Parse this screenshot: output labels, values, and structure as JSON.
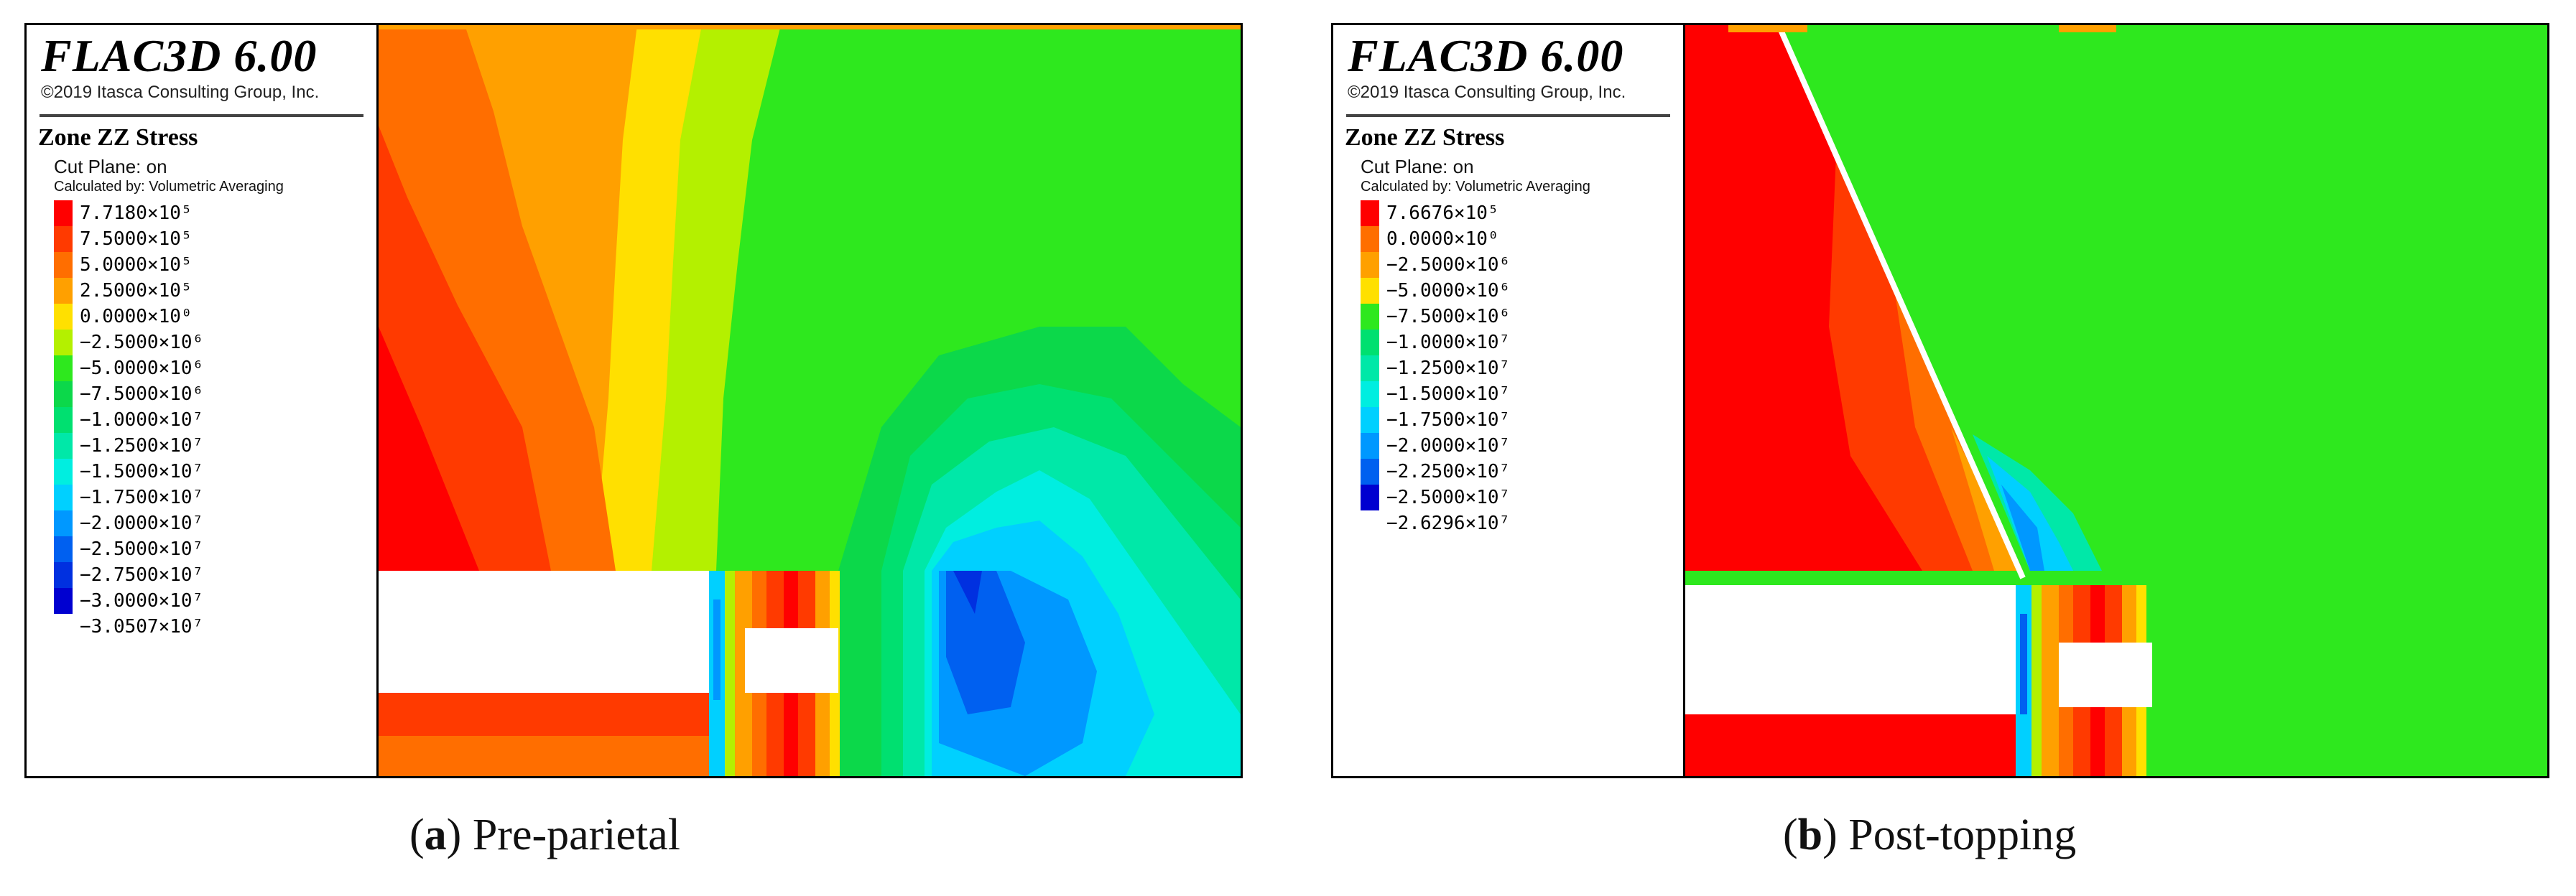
{
  "panels": [
    {
      "app_title": "FLAC3D 6.00",
      "copyright": "©2019 Itasca Consulting Group, Inc.",
      "section_title": "Zone ZZ Stress",
      "cut_plane": "Cut Plane: on",
      "calculated_by": "Calculated by: Volumetric Averaging",
      "legend": [
        {
          "label": "7.7180×10⁵",
          "color": "#ff0000"
        },
        {
          "label": "7.5000×10⁵",
          "color": "#ff3a00"
        },
        {
          "label": "5.0000×10⁵",
          "color": "#ff6e00"
        },
        {
          "label": "2.5000×10⁵",
          "color": "#ffa000"
        },
        {
          "label": "0.0000×10⁰",
          "color": "#ffe000"
        },
        {
          "label": "−2.5000×10⁶",
          "color": "#b4f000"
        },
        {
          "label": "−5.0000×10⁶",
          "color": "#2ee81e"
        },
        {
          "label": "−7.5000×10⁶",
          "color": "#0cd84a"
        },
        {
          "label": "−1.0000×10⁷",
          "color": "#00e070"
        },
        {
          "label": "−1.2500×10⁷",
          "color": "#00e8a8"
        },
        {
          "label": "−1.5000×10⁷",
          "color": "#00eee0"
        },
        {
          "label": "−1.7500×10⁷",
          "color": "#00d0ff"
        },
        {
          "label": "−2.0000×10⁷",
          "color": "#0098ff"
        },
        {
          "label": "−2.5000×10⁷",
          "color": "#0060f0"
        },
        {
          "label": "−2.7500×10⁷",
          "color": "#0030e0"
        },
        {
          "label": "−3.0000×10⁷",
          "color": "#0000d0"
        },
        {
          "label": "−3.0507×10⁷",
          "color": ""
        }
      ]
    },
    {
      "app_title": "FLAC3D 6.00",
      "copyright": "©2019 Itasca Consulting Group, Inc.",
      "section_title": "Zone ZZ Stress",
      "cut_plane": "Cut Plane: on",
      "calculated_by": "Calculated by: Volumetric Averaging",
      "legend": [
        {
          "label": "7.6676×10⁵",
          "color": "#ff0000"
        },
        {
          "label": "0.0000×10⁰",
          "color": "#ff6e00"
        },
        {
          "label": "−2.5000×10⁶",
          "color": "#ffa000"
        },
        {
          "label": "−5.0000×10⁶",
          "color": "#ffe000"
        },
        {
          "label": "−7.5000×10⁶",
          "color": "#2ee81e"
        },
        {
          "label": "−1.0000×10⁷",
          "color": "#00e070"
        },
        {
          "label": "−1.2500×10⁷",
          "color": "#00e8a8"
        },
        {
          "label": "−1.5000×10⁷",
          "color": "#00eee0"
        },
        {
          "label": "−1.7500×10⁷",
          "color": "#00d0ff"
        },
        {
          "label": "−2.0000×10⁷",
          "color": "#0098ff"
        },
        {
          "label": "−2.2500×10⁷",
          "color": "#0060f0"
        },
        {
          "label": "−2.5000×10⁷",
          "color": "#0000d0"
        },
        {
          "label": "−2.6296×10⁷",
          "color": ""
        }
      ]
    }
  ],
  "captions": [
    {
      "letter": "a",
      "text": " Pre-parietal"
    },
    {
      "letter": "b",
      "text": " Post-topping"
    }
  ]
}
